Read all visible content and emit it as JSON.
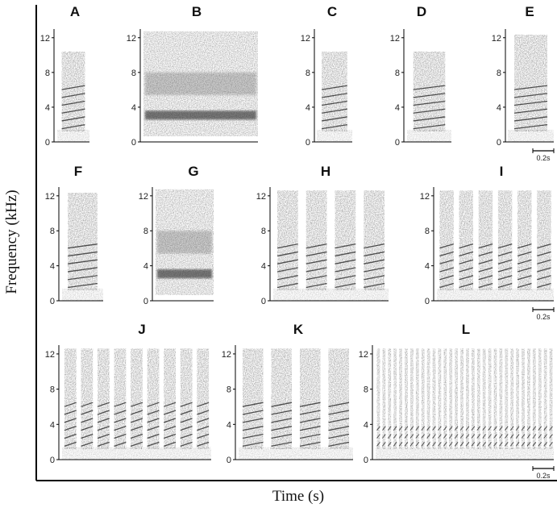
{
  "figure": {
    "ylabel": "Frequency (kHz)",
    "xlabel": "Time (s)",
    "scale_bar_label": "0.2s",
    "tick_labels": [
      "0",
      "4",
      "8",
      "12"
    ]
  },
  "chart_data": {
    "type": "spectrogram_grid",
    "ylabel": "Frequency (kHz)",
    "xlabel": "Time (s)",
    "y_ticks": [
      0,
      4,
      8,
      12
    ],
    "ylim": [
      0,
      13
    ],
    "scale_bar": "0.2s",
    "panels": [
      {
        "letter": "A",
        "notes": 1
      },
      {
        "letter": "B",
        "notes": 1
      },
      {
        "letter": "C",
        "notes": 1
      },
      {
        "letter": "D",
        "notes": 1
      },
      {
        "letter": "E",
        "notes": 1
      },
      {
        "letter": "F",
        "notes": 1
      },
      {
        "letter": "G",
        "notes": 1
      },
      {
        "letter": "H",
        "notes": 4
      },
      {
        "letter": "I",
        "notes": 6
      },
      {
        "letter": "J",
        "notes": 9
      },
      {
        "letter": "K",
        "notes": 4
      },
      {
        "letter": "L",
        "notes": 32
      }
    ]
  }
}
